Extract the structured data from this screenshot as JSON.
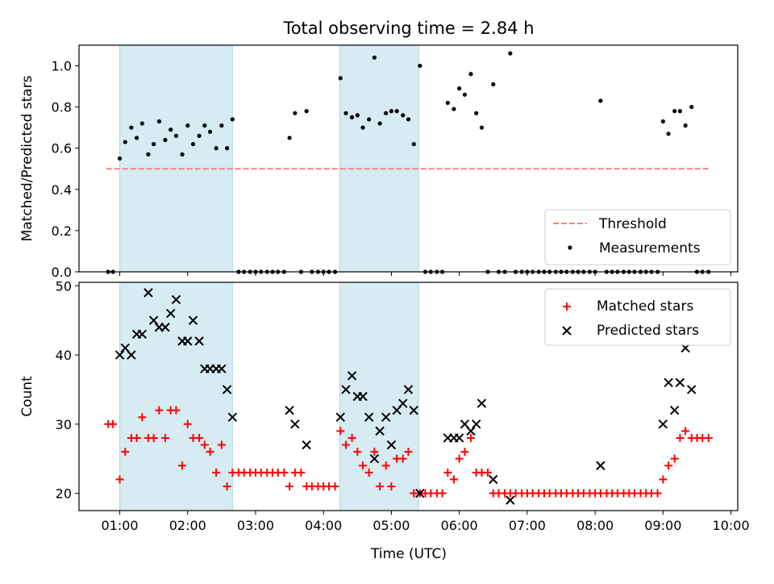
{
  "figure": {
    "title": "Total observing time = 2.84 h",
    "xlabel": "Time (UTC)"
  },
  "colors": {
    "shade": "#add8e6",
    "threshold": "#ff7f7f",
    "matched": "#ff0000",
    "predicted": "#000000",
    "measurement": "#000000"
  },
  "chart_data": [
    {
      "type": "scatter",
      "name": "ratio-panel",
      "ylabel": "Matched/Predicted stars",
      "xlim": [
        0.4,
        10.1
      ],
      "ylim": [
        0,
        1.1
      ],
      "yticks": [
        0.0,
        0.2,
        0.4,
        0.6,
        0.8,
        1.0
      ],
      "ytick_labels": [
        "0.0",
        "0.2",
        "0.4",
        "0.6",
        "0.8",
        "1.0"
      ],
      "xticks": [
        1,
        2,
        3,
        4,
        5,
        6,
        7,
        8,
        9,
        10
      ],
      "shaded_x_ranges": [
        [
          1.0,
          2.66
        ],
        [
          4.24,
          5.4
        ]
      ],
      "threshold": {
        "label": "Threshold",
        "y": 0.5,
        "x_range": [
          0.8,
          9.67
        ],
        "style": "dashed"
      },
      "legend": {
        "position": "lower-right",
        "entries": [
          "Threshold",
          "Measurements"
        ]
      },
      "series": [
        {
          "name": "Measurements",
          "marker": "dot",
          "x": [
            0.83,
            0.9,
            1.0,
            1.08,
            1.17,
            1.25,
            1.33,
            1.42,
            1.5,
            1.58,
            1.67,
            1.75,
            1.83,
            1.92,
            2.0,
            2.08,
            2.17,
            2.25,
            2.33,
            2.42,
            2.5,
            2.58,
            2.66,
            2.75,
            2.83,
            2.92,
            3.0,
            3.08,
            3.17,
            3.25,
            3.33,
            3.42,
            3.5,
            3.58,
            3.67,
            3.75,
            3.83,
            3.92,
            4.0,
            4.08,
            4.17,
            4.25,
            4.33,
            4.42,
            4.5,
            4.58,
            4.67,
            4.75,
            4.83,
            4.92,
            5.0,
            5.08,
            5.17,
            5.25,
            5.33,
            5.42,
            5.5,
            5.58,
            5.67,
            5.75,
            5.83,
            5.92,
            6.0,
            6.08,
            6.17,
            6.25,
            6.33,
            6.42,
            6.5,
            6.58,
            6.67,
            6.75,
            6.83,
            6.92,
            7.0,
            7.08,
            7.17,
            7.25,
            7.33,
            7.42,
            7.5,
            7.58,
            7.67,
            7.75,
            7.83,
            7.92,
            8.0,
            8.08,
            8.17,
            8.25,
            8.33,
            8.42,
            8.5,
            8.58,
            8.67,
            8.75,
            8.83,
            8.92,
            9.0,
            9.08,
            9.17,
            9.25,
            9.33,
            9.42,
            9.5,
            9.58,
            9.67
          ],
          "y": [
            0.0,
            0.0,
            0.55,
            0.63,
            0.7,
            0.65,
            0.72,
            0.57,
            0.62,
            0.73,
            0.64,
            0.69,
            0.66,
            0.57,
            0.71,
            0.62,
            0.66,
            0.71,
            0.68,
            0.6,
            0.71,
            0.6,
            0.74,
            0.0,
            0.0,
            0.0,
            0.0,
            0.0,
            0.0,
            0.0,
            0.0,
            0.0,
            0.65,
            0.77,
            0.0,
            0.78,
            0.0,
            0.0,
            0.0,
            0.0,
            0.0,
            0.94,
            0.77,
            0.75,
            0.76,
            0.7,
            0.74,
            1.04,
            0.72,
            0.77,
            0.78,
            0.78,
            0.76,
            0.74,
            0.62,
            1.0,
            0.0,
            0.0,
            0.0,
            0.0,
            0.82,
            0.79,
            0.89,
            0.86,
            0.96,
            0.77,
            0.7,
            0.0,
            0.91,
            0.0,
            0.0,
            1.06,
            0.0,
            0.0,
            0.0,
            0.0,
            0.0,
            0.0,
            0.0,
            0.0,
            0.0,
            0.0,
            0.0,
            0.0,
            0.0,
            0.0,
            0.0,
            0.83,
            0.0,
            0.0,
            0.0,
            0.0,
            0.0,
            0.0,
            0.0,
            0.0,
            0.0,
            0.0,
            0.73,
            0.67,
            0.78,
            0.78,
            0.71,
            0.8,
            0.0,
            0.0,
            0.0
          ]
        }
      ]
    },
    {
      "type": "scatter",
      "name": "count-panel",
      "ylabel": "Count",
      "xlim": [
        0.4,
        10.1
      ],
      "ylim": [
        17.5,
        50.5
      ],
      "yticks": [
        20,
        30,
        40,
        50
      ],
      "ytick_labels": [
        "20",
        "30",
        "40",
        "50"
      ],
      "xticks": [
        1,
        2,
        3,
        4,
        5,
        6,
        7,
        8,
        9,
        10
      ],
      "xtick_labels": [
        "01:00",
        "02:00",
        "03:00",
        "04:00",
        "05:00",
        "06:00",
        "07:00",
        "08:00",
        "09:00",
        "10:00"
      ],
      "shaded_x_ranges": [
        [
          1.0,
          2.66
        ],
        [
          4.24,
          5.4
        ]
      ],
      "legend": {
        "position": "upper-right",
        "entries": [
          "Matched stars",
          "Predicted stars"
        ]
      },
      "series": [
        {
          "name": "Matched stars",
          "marker": "plus",
          "x": [
            0.83,
            0.9,
            1.0,
            1.08,
            1.17,
            1.25,
            1.33,
            1.42,
            1.5,
            1.58,
            1.67,
            1.75,
            1.83,
            1.92,
            2.0,
            2.08,
            2.17,
            2.25,
            2.33,
            2.42,
            2.5,
            2.58,
            2.66,
            2.75,
            2.83,
            2.92,
            3.0,
            3.08,
            3.17,
            3.25,
            3.33,
            3.42,
            3.5,
            3.58,
            3.67,
            3.75,
            3.83,
            3.92,
            4.0,
            4.08,
            4.17,
            4.25,
            4.33,
            4.42,
            4.5,
            4.58,
            4.67,
            4.75,
            4.83,
            4.92,
            5.0,
            5.08,
            5.17,
            5.25,
            5.33,
            5.42,
            5.5,
            5.58,
            5.67,
            5.75,
            5.83,
            5.92,
            6.0,
            6.08,
            6.17,
            6.25,
            6.33,
            6.42,
            6.5,
            6.58,
            6.67,
            6.75,
            6.83,
            6.92,
            7.0,
            7.08,
            7.17,
            7.25,
            7.33,
            7.42,
            7.5,
            7.58,
            7.67,
            7.75,
            7.83,
            7.92,
            8.0,
            8.08,
            8.17,
            8.25,
            8.33,
            8.42,
            8.5,
            8.58,
            8.67,
            8.75,
            8.83,
            8.92,
            9.0,
            9.08,
            9.17,
            9.25,
            9.33,
            9.42,
            9.5,
            9.58,
            9.67
          ],
          "y": [
            30,
            30,
            22,
            26,
            28,
            28,
            31,
            28,
            28,
            32,
            28,
            32,
            32,
            24,
            30,
            28,
            28,
            27,
            26,
            23,
            27,
            21,
            23,
            23,
            23,
            23,
            23,
            23,
            23,
            23,
            23,
            23,
            21,
            23,
            23,
            21,
            21,
            21,
            21,
            21,
            21,
            29,
            27,
            28,
            26,
            24,
            23,
            26,
            21,
            24,
            21,
            25,
            25,
            26,
            20,
            20,
            20,
            20,
            20,
            20,
            23,
            22,
            25,
            26,
            28,
            23,
            23,
            23,
            20,
            20,
            20,
            20,
            20,
            20,
            20,
            20,
            20,
            20,
            20,
            20,
            20,
            20,
            20,
            20,
            20,
            20,
            20,
            20,
            20,
            20,
            20,
            20,
            20,
            20,
            20,
            20,
            20,
            20,
            22,
            24,
            25,
            28,
            29,
            28,
            28,
            28,
            28
          ]
        },
        {
          "name": "Predicted stars",
          "marker": "x",
          "x": [
            1.0,
            1.08,
            1.17,
            1.25,
            1.33,
            1.42,
            1.5,
            1.58,
            1.67,
            1.75,
            1.83,
            1.92,
            2.0,
            2.08,
            2.17,
            2.25,
            2.33,
            2.42,
            2.5,
            2.58,
            2.66,
            3.5,
            3.58,
            3.75,
            4.25,
            4.33,
            4.42,
            4.5,
            4.58,
            4.67,
            4.75,
            4.83,
            4.92,
            5.0,
            5.08,
            5.17,
            5.25,
            5.33,
            5.42,
            5.83,
            5.92,
            6.0,
            6.08,
            6.17,
            6.25,
            6.33,
            6.5,
            6.75,
            8.08,
            9.0,
            9.08,
            9.17,
            9.25,
            9.33,
            9.42
          ],
          "y": [
            40,
            41,
            40,
            43,
            43,
            49,
            45,
            44,
            44,
            46,
            48,
            42,
            42,
            45,
            42,
            38,
            38,
            38,
            38,
            35,
            31,
            32,
            30,
            27,
            31,
            35,
            37,
            34,
            34,
            31,
            25,
            29,
            31,
            27,
            32,
            33,
            35,
            32,
            20,
            28,
            28,
            28,
            30,
            29,
            30,
            33,
            22,
            19,
            24,
            30,
            36,
            32,
            36,
            41,
            35
          ]
        }
      ]
    }
  ]
}
